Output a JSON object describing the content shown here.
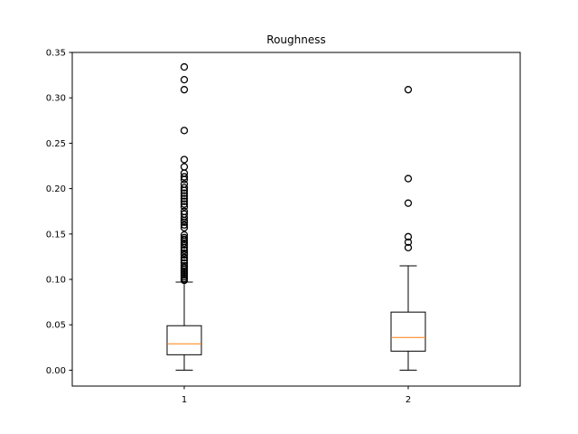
{
  "chart_data": {
    "type": "boxplot",
    "title": "Roughness",
    "xlabel": "",
    "ylabel": "",
    "categories": [
      "1",
      "2"
    ],
    "ylim": [
      -0.0175,
      0.35
    ],
    "y_ticks": [
      0.0,
      0.05,
      0.1,
      0.15,
      0.2,
      0.25,
      0.3,
      0.35
    ],
    "y_tick_labels": [
      "0.00",
      "0.05",
      "0.10",
      "0.15",
      "0.20",
      "0.25",
      "0.30",
      "0.35"
    ],
    "grid": false,
    "colors": {
      "box": "#000000",
      "median": "#ff7f0e",
      "flier": "#000000"
    },
    "boxes": [
      {
        "category": "1",
        "whisker_low": 0.0,
        "q1": 0.017,
        "median": 0.029,
        "q3": 0.049,
        "whisker_high": 0.097,
        "outliers": [
          0.099,
          0.101,
          0.103,
          0.105,
          0.107,
          0.109,
          0.111,
          0.113,
          0.115,
          0.118,
          0.121,
          0.124,
          0.127,
          0.129,
          0.132,
          0.135,
          0.138,
          0.14,
          0.142,
          0.144,
          0.146,
          0.149,
          0.157,
          0.16,
          0.163,
          0.165,
          0.168,
          0.172,
          0.175,
          0.18,
          0.183,
          0.186,
          0.189,
          0.192,
          0.195,
          0.198,
          0.201,
          0.205,
          0.21,
          0.213,
          0.217,
          0.224,
          0.232,
          0.264,
          0.309,
          0.32,
          0.334
        ]
      },
      {
        "category": "2",
        "whisker_low": 0.0,
        "q1": 0.021,
        "median": 0.036,
        "q3": 0.064,
        "whisker_high": 0.115,
        "outliers": [
          0.135,
          0.141,
          0.147,
          0.184,
          0.211,
          0.309
        ]
      }
    ]
  }
}
